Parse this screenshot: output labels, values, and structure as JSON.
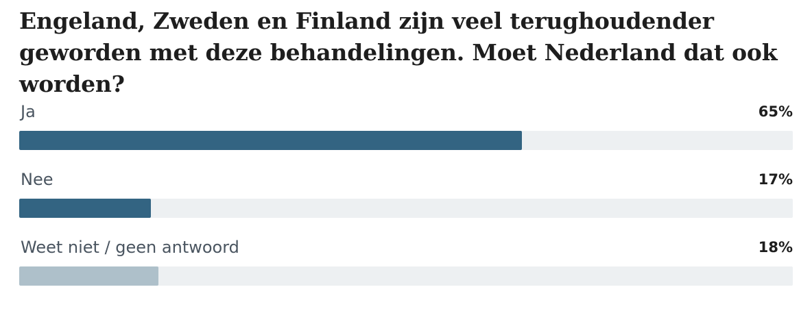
{
  "question": "Engeland, Zweden en Finland zijn veel terughoudender geworden met deze behandelingen. Moet Nederland dat ook worden?",
  "colors": {
    "primary_bar": "#336482",
    "secondary_bar": "#aec0ca",
    "track": "#edf0f2"
  },
  "chart_data": {
    "type": "bar",
    "title": "Engeland, Zweden en Finland zijn veel terughoudender geworden met deze behandelingen. Moet Nederland dat ook worden?",
    "categories": [
      "Ja",
      "Nee",
      "Weet niet / geen antwoord"
    ],
    "values": [
      65,
      17,
      18
    ],
    "value_labels": [
      "65%",
      "17%",
      "18%"
    ],
    "xlim": [
      0,
      100
    ],
    "orientation": "horizontal",
    "grid": false,
    "bar_colors": [
      "#336482",
      "#336482",
      "#aec0ca"
    ]
  }
}
